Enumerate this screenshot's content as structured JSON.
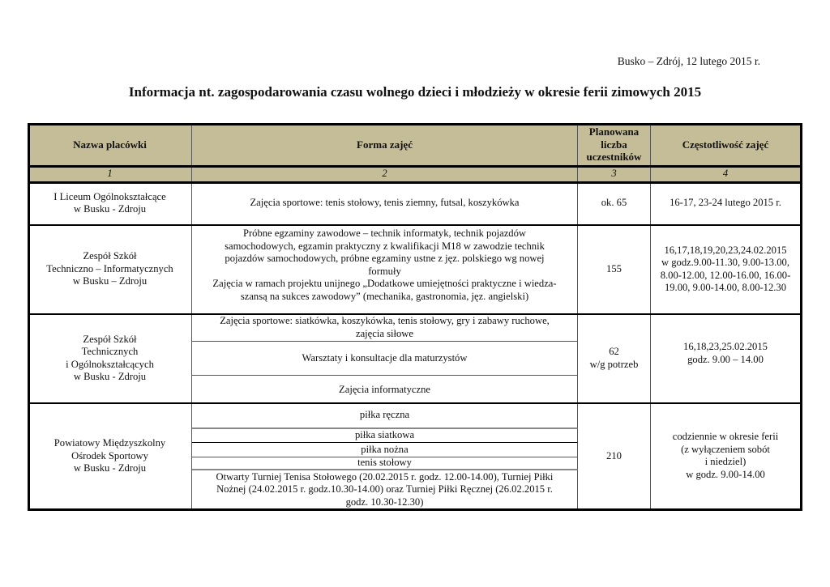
{
  "date_line": "Busko – Zdrój, 12 lutego 2015 r.",
  "title": "Informacja nt. zagospodarowania czasu wolnego dzieci i młodzieży w okresie ferii zimowych 2015",
  "table": {
    "headers": [
      "Nazwa placówki",
      "Forma zajęć",
      "Planowana\nliczba\nuczestników",
      "Częstotliwość zajęć"
    ],
    "column_numbers": [
      "1",
      "2",
      "3",
      "4"
    ],
    "rows": [
      {
        "name": "I Liceum Ogólnokształcące\nw Busku -  Zdroju",
        "forms": [
          "Zajęcia sportowe: tenis stołowy, tenis ziemny, futsal, koszykówka"
        ],
        "count": "ok. 65",
        "frequency": "16-17, 23-24 lutego 2015 r."
      },
      {
        "name": "Zespół Szkół\nTechniczno – Informatycznych\nw Busku – Zdroju",
        "forms": [
          "Próbne egzaminy zawodowe – technik informatyk, technik pojazdów\nsamochodowych, egzamin praktyczny z kwalifikacji M18 w zawodzie technik\npojazdów samochodowych, próbne egzaminy ustne z jęz. polskiego wg nowej\nformuły\nZajęcia  w ramach  projektu unijnego „Dodatkowe umiejętności praktyczne i wiedza-\nszansą na sukces zawodowy” (mechanika, gastronomia, jęz. angielski)"
        ],
        "count": "155",
        "frequency": "16,17,18,19,20,23,24.02.2015\nw godz.9.00-11.30, 9.00-13.00,\n8.00-12.00, 12.00-16.00, 16.00-\n19.00, 9.00-14.00, 8.00-12.30"
      },
      {
        "name": "Zespół Szkół\nTechnicznych\ni Ogólnokształcących\nw Busku - Zdroju",
        "forms": [
          "Zajęcia sportowe:  siatkówka, koszykówka, tenis stołowy, gry i zabawy ruchowe,\nzajęcia siłowe",
          "Warsztaty i konsultacje dla maturzystów",
          "Zajęcia informatyczne"
        ],
        "count": "62\nw/g potrzeb",
        "frequency": "16,18,23,25.02.2015\ngodz.  9.00 – 14.00"
      },
      {
        "name": "Powiatowy Międzyszkolny\nOśrodek Sportowy\nw Busku - Zdroju",
        "forms": [
          "piłka ręczna",
          "piłka siatkowa",
          "piłka nożna",
          "tenis stołowy",
          "Otwarty Turniej Tenisa Stołowego (20.02.2015 r. godz. 12.00-14.00), Turniej Piłki\nNożnej  (24.02.2015 r. godz.10.30-14.00)  oraz Turniej Piłki Ręcznej (26.02.2015 r.\ngodz. 10.30-12.30)"
        ],
        "count": "210",
        "frequency": "codziennie w okresie ferii\n(z wyłączeniem sobót\ni niedziel)\nw godz. 9.00-14.00"
      }
    ]
  }
}
